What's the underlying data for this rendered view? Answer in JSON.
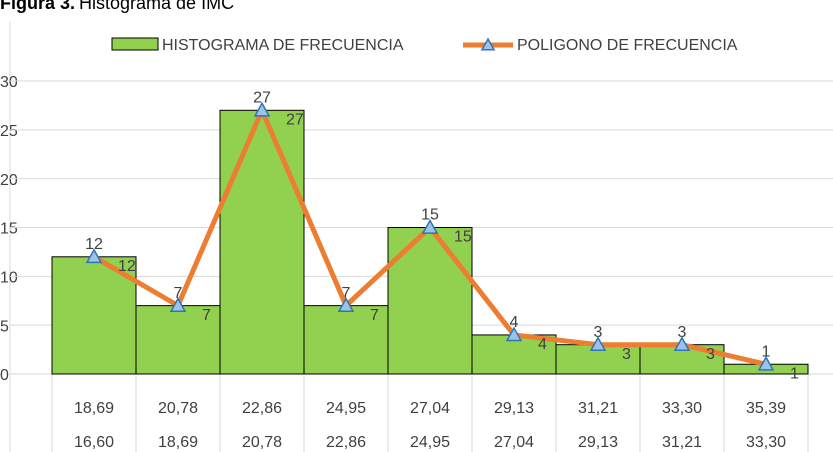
{
  "chart_data": {
    "type": "bar",
    "title": {
      "bold": "Figura 3.",
      "rest": "Histograma de IMC"
    },
    "categories": [
      [
        "18,69",
        "16,60"
      ],
      [
        "20,78",
        "18,69"
      ],
      [
        "22,86",
        "20,78"
      ],
      [
        "24,95",
        "22,86"
      ],
      [
        "27,04",
        "24,95"
      ],
      [
        "29,13",
        "27,04"
      ],
      [
        "31,21",
        "29,13"
      ],
      [
        "33,30",
        "31,21"
      ],
      [
        "35,39",
        "33,30"
      ]
    ],
    "series": [
      {
        "name": "HISTOGRAMA DE FRECUENCIA",
        "type": "bar",
        "color": "#92d050",
        "values": [
          12,
          7,
          27,
          7,
          15,
          4,
          3,
          3,
          1
        ]
      },
      {
        "name": "POLIGONO DE FRECUENCIA",
        "type": "line",
        "color": "#ed7d31",
        "marker_color": "#9dc3e6",
        "values": [
          12,
          7,
          27,
          7,
          15,
          4,
          3,
          3,
          1
        ]
      }
    ],
    "ylim": [
      0,
      30
    ],
    "yticks": [
      0,
      5,
      10,
      15,
      20,
      25,
      30
    ],
    "grid": true,
    "legend": "top"
  }
}
